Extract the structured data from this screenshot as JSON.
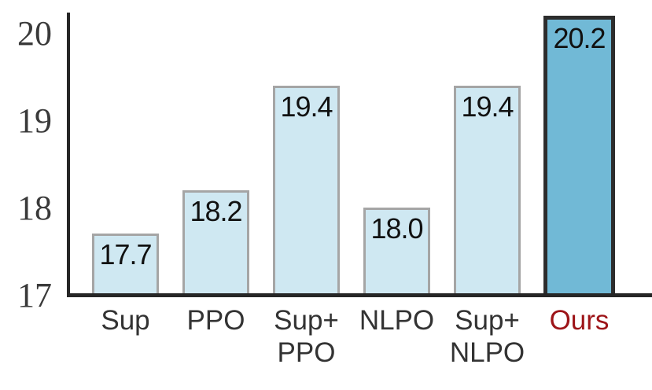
{
  "chart_data": {
    "type": "bar",
    "title": "",
    "xlabel": "",
    "ylabel": "",
    "categories": [
      "Sup",
      "PPO",
      "Sup+PPO",
      "NLPO",
      "Sup+NLPO",
      "Ours"
    ],
    "values": [
      17.7,
      18.2,
      19.4,
      18.0,
      19.4,
      20.2
    ],
    "ylim": [
      17,
      20.3
    ],
    "grid": false,
    "legend": null,
    "yticks": [
      {
        "value": 20,
        "label": "20"
      },
      {
        "value": 19,
        "label": "19"
      },
      {
        "value": 18,
        "label": "18"
      },
      {
        "value": 17,
        "label": "17"
      }
    ],
    "bars": [
      {
        "label_lines": [
          "Sup"
        ],
        "value": 17.7,
        "value_label": "17.7",
        "highlight": false
      },
      {
        "label_lines": [
          "PPO"
        ],
        "value": 18.2,
        "value_label": "18.2",
        "highlight": false
      },
      {
        "label_lines": [
          "Sup+",
          "PPO"
        ],
        "value": 19.4,
        "value_label": "19.4",
        "highlight": false
      },
      {
        "label_lines": [
          "NLPO"
        ],
        "value": 18.0,
        "value_label": "18.0",
        "highlight": false
      },
      {
        "label_lines": [
          "Sup+",
          "NLPO"
        ],
        "value": 19.4,
        "value_label": "19.4",
        "highlight": false
      },
      {
        "label_lines": [
          "Ours"
        ],
        "value": 20.2,
        "value_label": "20.2",
        "highlight": true
      }
    ]
  },
  "colors": {
    "bar_fill": "#cfe8f2",
    "bar_border": "#a5a5a5",
    "highlight_fill": "#71b9d6",
    "highlight_border": "#2d2d2d",
    "highlight_label_text": "#9d1418",
    "axis": "#262626",
    "tick_text": "#3a3a3a",
    "label_text": "#333333",
    "value_text": "#111111"
  }
}
